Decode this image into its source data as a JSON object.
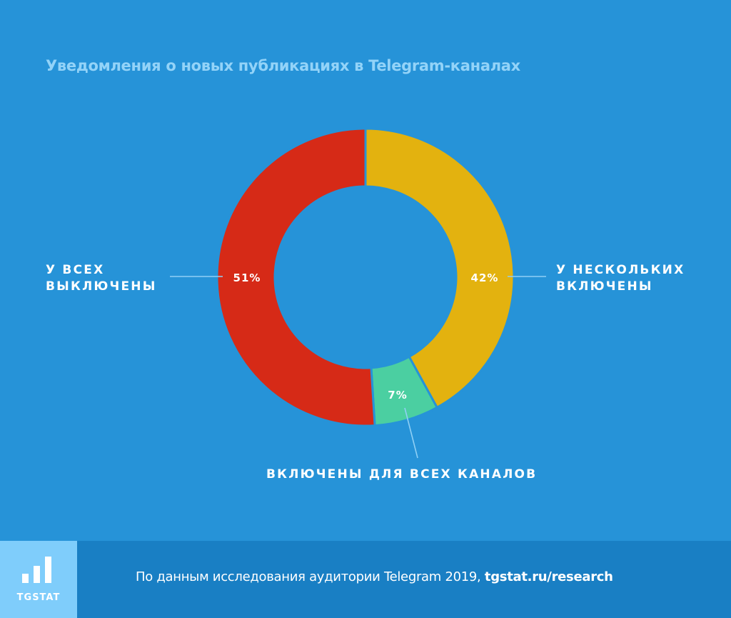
{
  "chart_data": {
    "type": "pie",
    "title": "Уведомления о новых публикациях в Telegram-каналах",
    "slices": [
      {
        "label_lines": [
          "У НЕСКОЛЬКИХ",
          "ВКЛЮЧЕНЫ"
        ],
        "value": 42,
        "value_label": "42%",
        "color": "#e3b20f"
      },
      {
        "label_lines": [
          "ВКЛЮЧЕНЫ ДЛЯ ВСЕХ КАНАЛОВ"
        ],
        "value": 7,
        "value_label": "7%",
        "color": "#4bcfa1"
      },
      {
        "label_lines": [
          "У ВСЕХ",
          "ВЫКЛЮЧЕНЫ"
        ],
        "value": 51,
        "value_label": "51%",
        "color": "#d62a17"
      }
    ]
  },
  "labels": {
    "some_on": [
      "У НЕСКОЛЬКИХ",
      "ВКЛЮЧЕНЫ"
    ],
    "all_on": "ВКЛЮЧЕНЫ ДЛЯ ВСЕХ КАНАЛОВ",
    "all_off": [
      "У ВСЕХ",
      "ВЫКЛЮЧЕНЫ"
    ]
  },
  "footer": {
    "logo_text": "TGSTAT",
    "source_text": "По данным исследования аудитории Telegram 2019, ",
    "source_link": "tgstat.ru/research"
  },
  "colors": {
    "background": "#2693d8",
    "footer_bg": "#197fc4",
    "logo_bg": "#7fcdfb",
    "title": "#93d3f8",
    "leader_line": "#8fd0f5"
  }
}
